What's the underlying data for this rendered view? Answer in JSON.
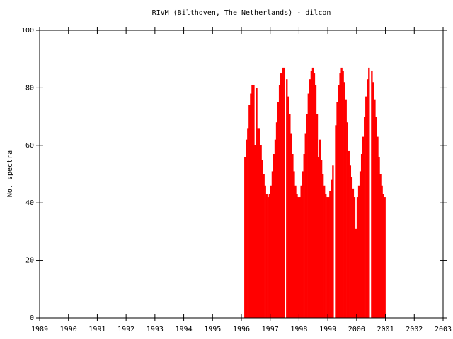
{
  "chart_data": {
    "type": "bar",
    "title": "RIVM (Bilthoven, The Netherlands) - dilcon",
    "y_label": "No. spectra",
    "color": "#ff0000",
    "bar_width": 0.05,
    "xlim": [
      1989,
      2003
    ],
    "xticks": [
      1989,
      1990,
      1991,
      1992,
      1993,
      1994,
      1995,
      1996,
      1997,
      1998,
      1999,
      2000,
      2001,
      2002,
      2003
    ],
    "ylim": [
      0,
      100
    ],
    "yticks": [
      0,
      20,
      40,
      60,
      80,
      100
    ],
    "x": [
      1996.1,
      1996.15,
      1996.2,
      1996.25,
      1996.3,
      1996.35,
      1996.4,
      1996.45,
      1996.5,
      1996.55,
      1996.6,
      1996.65,
      1996.7,
      1996.75,
      1996.8,
      1996.85,
      1996.9,
      1996.95,
      1997.0,
      1997.05,
      1997.1,
      1997.15,
      1997.2,
      1997.25,
      1997.3,
      1997.35,
      1997.4,
      1997.45,
      1997.5,
      1997.55,
      1997.6,
      1997.65,
      1997.7,
      1997.75,
      1997.8,
      1997.85,
      1997.9,
      1997.95,
      1998.0,
      1998.05,
      1998.1,
      1998.15,
      1998.2,
      1998.25,
      1998.3,
      1998.35,
      1998.4,
      1998.45,
      1998.5,
      1998.55,
      1998.6,
      1998.65,
      1998.7,
      1998.75,
      1998.8,
      1998.85,
      1998.9,
      1998.95,
      1999.0,
      1999.05,
      1999.1,
      1999.15,
      1999.2,
      1999.25,
      1999.3,
      1999.35,
      1999.4,
      1999.45,
      1999.5,
      1999.55,
      1999.6,
      1999.65,
      1999.7,
      1999.75,
      1999.8,
      1999.85,
      1999.9,
      1999.95,
      2000.0,
      2000.05,
      2000.1,
      2000.15,
      2000.2,
      2000.25,
      2000.3,
      2000.35,
      2000.4,
      2000.45,
      2000.5,
      2000.55,
      2000.6,
      2000.65,
      2000.7,
      2000.75,
      2000.8,
      2000.85,
      2000.9,
      2000.95
    ],
    "values": [
      56,
      62,
      66,
      74,
      78,
      81,
      81,
      60,
      80,
      66,
      66,
      60,
      55,
      50,
      46,
      43,
      42,
      43,
      46,
      51,
      57,
      62,
      68,
      75,
      81,
      85,
      87,
      87,
      0,
      83,
      77,
      71,
      64,
      57,
      51,
      46,
      43,
      42,
      42,
      46,
      51,
      57,
      64,
      71,
      78,
      83,
      86,
      87,
      85,
      81,
      71,
      56,
      62,
      55,
      50,
      46,
      43,
      42,
      42,
      44,
      48,
      53,
      0,
      67,
      75,
      81,
      85,
      87,
      86,
      82,
      76,
      68,
      58,
      53,
      49,
      45,
      42,
      31,
      42,
      46,
      51,
      57,
      63,
      70,
      77,
      83,
      87,
      0,
      86,
      82,
      76,
      70,
      63,
      56,
      50,
      46,
      43,
      42
    ]
  }
}
